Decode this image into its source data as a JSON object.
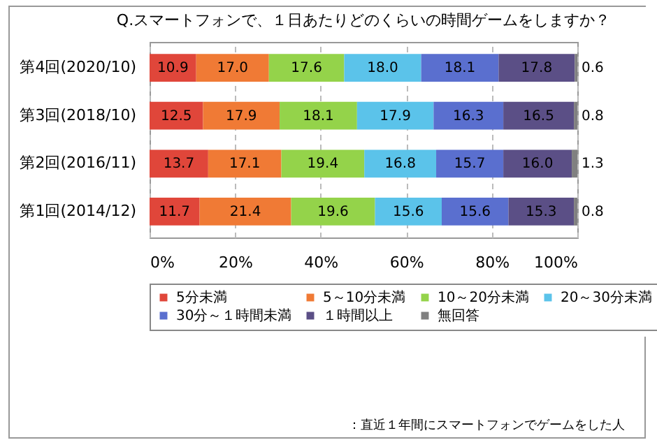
{
  "chart_data": {
    "type": "bar",
    "orientation": "horizontal",
    "stacked": true,
    "title": "Q.スマートフォンで、１日あたりどのくらいの時間ゲームをしますか？",
    "categories": [
      "第4回(2020/10)",
      "第3回(2018/10)",
      "第2回(2016/11)",
      "第1回(2014/12)"
    ],
    "series": [
      {
        "name": "5分未満",
        "color": "#e0463a",
        "values": [
          10.9,
          12.5,
          13.7,
          11.7
        ],
        "value_labels": [
          "10.9",
          "12.5",
          "13.7",
          "11.7"
        ]
      },
      {
        "name": "5～10分未満",
        "color": "#f07a35",
        "values": [
          17.0,
          17.9,
          17.1,
          21.4
        ],
        "value_labels": [
          "17.0",
          "17.9",
          "17.1",
          "21.4"
        ]
      },
      {
        "name": "10～20分未満",
        "color": "#94d34a",
        "values": [
          17.6,
          18.1,
          19.4,
          19.6
        ],
        "value_labels": [
          "17.6",
          "18.1",
          "19.4",
          "19.6"
        ]
      },
      {
        "name": "20～30分未満",
        "color": "#5bc3ea",
        "values": [
          18.0,
          17.9,
          16.8,
          15.6
        ],
        "value_labels": [
          "18.0",
          "17.9",
          "16.8",
          "15.6"
        ]
      },
      {
        "name": "30分～１時間未満",
        "color": "#5a6fcf",
        "values": [
          18.1,
          16.3,
          15.7,
          15.6
        ],
        "value_labels": [
          "18.1",
          "16.3",
          "15.7",
          "15.6"
        ]
      },
      {
        "name": "１時間以上",
        "color": "#5b4f86",
        "values": [
          17.8,
          16.5,
          16.0,
          15.3
        ],
        "value_labels": [
          "17.8",
          "16.5",
          "16.0",
          "15.3"
        ]
      },
      {
        "name": "無回答",
        "color": "#808080",
        "values": [
          0.6,
          0.8,
          1.3,
          0.8
        ],
        "value_labels": [
          "0.6",
          "0.8",
          "1.3",
          "0.8"
        ]
      }
    ],
    "xlim": [
      0,
      100
    ],
    "xticks": [
      {
        "value": 0,
        "label": "0%"
      },
      {
        "value": 20,
        "label": "20%"
      },
      {
        "value": 40,
        "label": "40%"
      },
      {
        "value": 60,
        "label": "60%"
      },
      {
        "value": 80,
        "label": "80%"
      },
      {
        "value": 100,
        "label": "100%"
      }
    ],
    "grid": "x",
    "legend": "bottom",
    "annotations": [
      "：直近１年間にスマートフォンでゲームをした人"
    ]
  }
}
